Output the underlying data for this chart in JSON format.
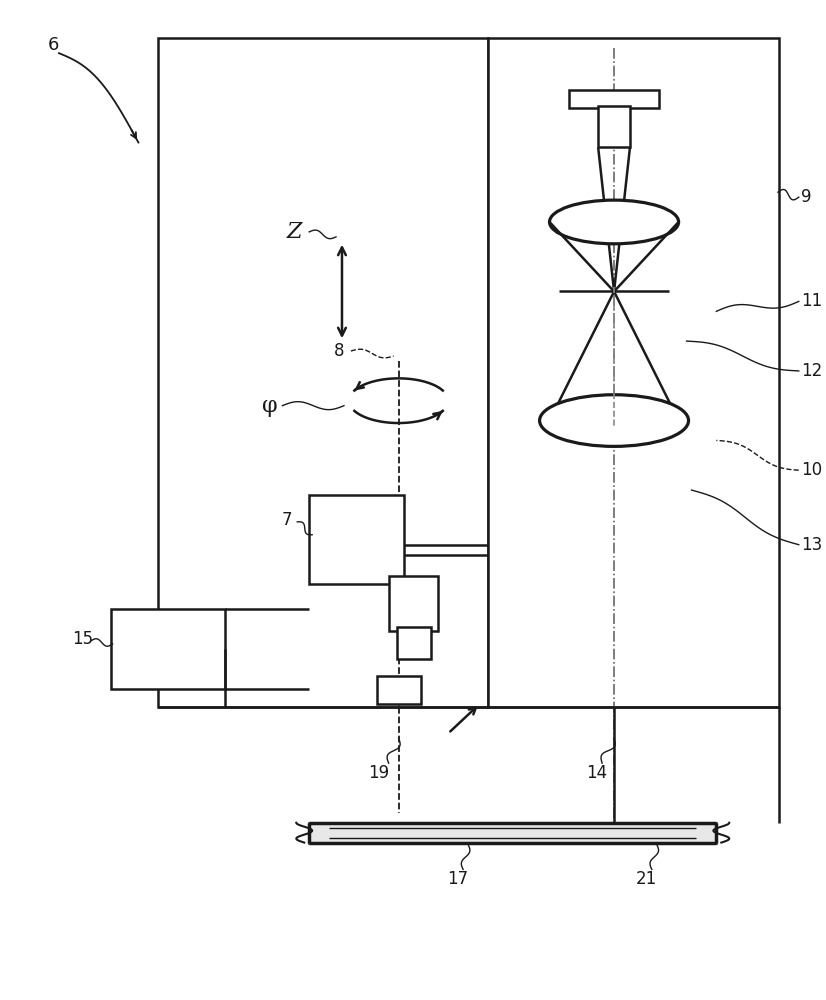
{
  "bg": "#ffffff",
  "lc": "#1a1a1a",
  "fig_w": 8.26,
  "fig_h": 10.0,
  "dpi": 100
}
